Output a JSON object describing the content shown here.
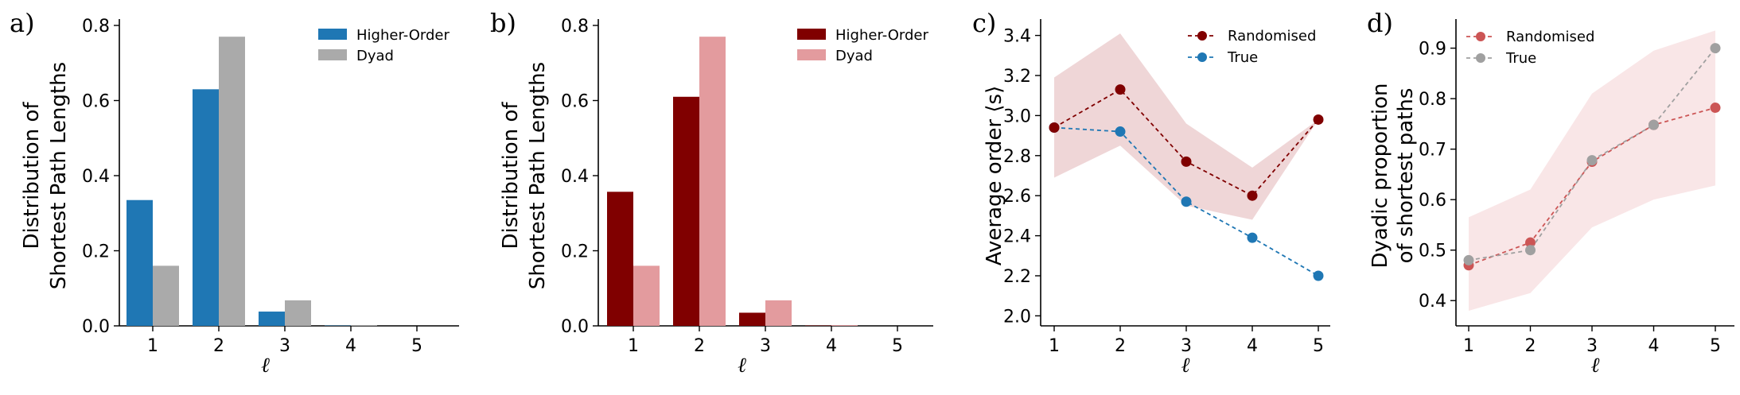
{
  "colors": {
    "blue": "#1f77b4",
    "grey": "#aaaaaa",
    "darkred": "#800000",
    "pink": "#e39b9e",
    "randomised_line": "#800000",
    "true_line": "#1f77b4",
    "band_c": "#efd6d7",
    "band_d": "#f9e6e7",
    "randomised_d": "#cc5555",
    "true_d": "#a0a0a0"
  },
  "chart_data": [
    {
      "type": "bar",
      "panel_letter": "a)",
      "categories": [
        "1",
        "2",
        "3",
        "4",
        "5"
      ],
      "series": [
        {
          "name": "Higher-Order",
          "values": [
            0.335,
            0.63,
            0.038,
            0.001,
            0.0
          ]
        },
        {
          "name": "Dyad",
          "values": [
            0.16,
            0.77,
            0.068,
            0.002,
            0.0
          ]
        }
      ],
      "ylabel_line1": "Distribution of",
      "ylabel_line2": "Shortest Path Lengths",
      "xlabel": "ℓ",
      "ylim": [
        0,
        0.8
      ],
      "yticks": [
        "0.0",
        "0.2",
        "0.4",
        "0.6",
        "0.8"
      ],
      "legend": "top-right"
    },
    {
      "type": "bar",
      "panel_letter": "b)",
      "categories": [
        "1",
        "2",
        "3",
        "4",
        "5"
      ],
      "series": [
        {
          "name": "Higher-Order",
          "values": [
            0.357,
            0.61,
            0.035,
            0.001,
            0.0
          ]
        },
        {
          "name": "Dyad",
          "values": [
            0.16,
            0.77,
            0.068,
            0.002,
            0.0
          ]
        }
      ],
      "ylabel_line1": "Distribution of",
      "ylabel_line2": "Shortest Path Lengths",
      "xlabel": "ℓ",
      "ylim": [
        0,
        0.8
      ],
      "yticks": [
        "0.0",
        "0.2",
        "0.4",
        "0.6",
        "0.8"
      ],
      "legend": "top-right"
    },
    {
      "type": "line",
      "panel_letter": "c)",
      "x": [
        1,
        2,
        3,
        4,
        5
      ],
      "xticks": [
        "1",
        "2",
        "3",
        "4",
        "5"
      ],
      "series": [
        {
          "name": "Randomised",
          "values": [
            2.94,
            3.13,
            2.77,
            2.6,
            2.98
          ],
          "band_lower": [
            2.69,
            2.85,
            2.55,
            2.48,
            2.98
          ],
          "band_upper": [
            3.19,
            3.41,
            2.96,
            2.74,
            2.98
          ]
        },
        {
          "name": "True",
          "values": [
            2.94,
            2.92,
            2.57,
            2.39,
            2.2
          ]
        }
      ],
      "ylabel_line1": "Average order ⟨s⟩",
      "xlabel": "ℓ",
      "ylim": [
        1.95,
        3.45
      ],
      "yticks": [
        "2.0",
        "2.2",
        "2.4",
        "2.6",
        "2.8",
        "3.0",
        "3.2",
        "3.4"
      ],
      "legend": "top-right"
    },
    {
      "type": "line",
      "panel_letter": "d)",
      "x": [
        1,
        2,
        3,
        4,
        5
      ],
      "xticks": [
        "1",
        "2",
        "3",
        "4",
        "5"
      ],
      "series": [
        {
          "name": "Randomised",
          "values": [
            0.47,
            0.515,
            0.675,
            0.748,
            0.782
          ],
          "band_lower": [
            0.38,
            0.415,
            0.545,
            0.6,
            0.628
          ],
          "band_upper": [
            0.565,
            0.62,
            0.81,
            0.895,
            0.935
          ]
        },
        {
          "name": "True",
          "values": [
            0.48,
            0.5,
            0.678,
            0.748,
            0.9
          ]
        }
      ],
      "ylabel_line1": "Dyadic proportion",
      "ylabel_line2": "of shortest paths",
      "xlabel": "ℓ",
      "ylim": [
        0.35,
        0.945
      ],
      "yticks": [
        "0.4",
        "0.5",
        "0.6",
        "0.7",
        "0.8",
        "0.9"
      ],
      "legend": "top-left"
    }
  ]
}
